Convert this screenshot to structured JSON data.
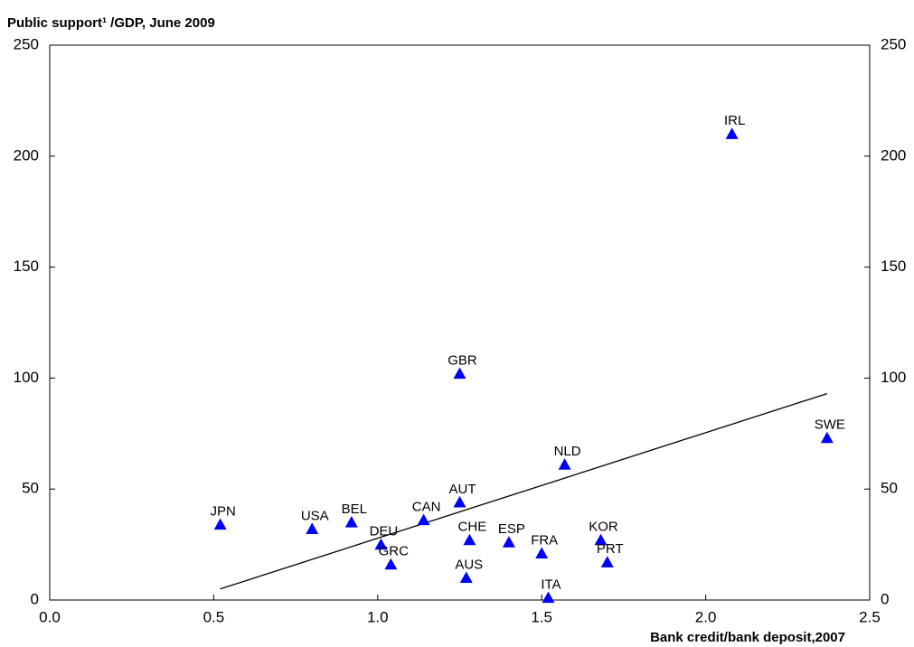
{
  "chart_data": {
    "type": "scatter",
    "title": "Public support¹ /GDP, June 2009",
    "x_label": "Bank credit/bank deposit,2007",
    "point_labels": [
      "JPN",
      "USA",
      "BEL",
      "DEU",
      "GRC",
      "CAN",
      "AUT",
      "GBR",
      "CHE",
      "AUS",
      "ESP",
      "FRA",
      "ITA",
      "NLD",
      "KOR",
      "PRT",
      "IRL",
      "SWE"
    ],
    "x": [
      0.52,
      0.8,
      0.92,
      1.01,
      1.04,
      1.14,
      1.25,
      1.25,
      1.28,
      1.27,
      1.4,
      1.5,
      1.52,
      1.57,
      1.68,
      1.7,
      2.08,
      2.37
    ],
    "values": [
      34,
      32,
      35,
      25,
      16,
      36,
      44,
      102,
      27,
      10,
      26,
      21,
      1,
      61,
      27,
      17,
      210,
      73
    ],
    "color": "#0000ff",
    "trend_line": {
      "x": [
        0.52,
        2.37
      ],
      "values": [
        5,
        93
      ],
      "color": "#000000"
    },
    "xlim": [
      0,
      2.5
    ],
    "xticks": [
      {
        "value": 0,
        "label": "0.0"
      },
      0.5,
      {
        "value": 1,
        "label": "1.0"
      },
      1.5,
      {
        "value": 2,
        "label": "2.0"
      },
      2.5
    ],
    "ylim": [
      0,
      250
    ],
    "yticks": [
      0,
      50,
      100,
      150,
      200,
      250
    ],
    "y2lim": [
      0,
      250
    ],
    "y2ticks": [
      0,
      50,
      100,
      150,
      200,
      250
    ]
  }
}
